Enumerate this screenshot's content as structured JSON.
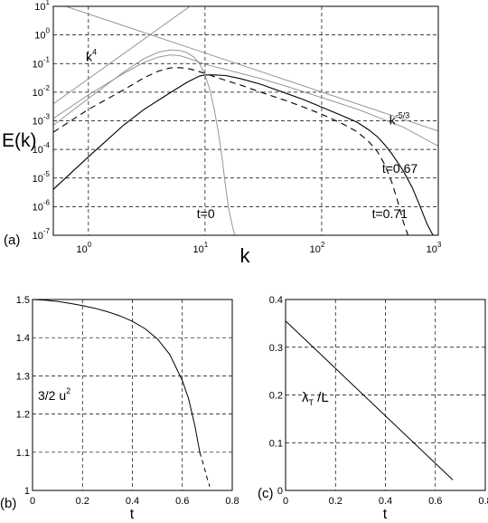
{
  "chart_data": [
    {
      "type": "line",
      "panel_label": "(a)",
      "xlabel": "k",
      "ylabel": "E(k)",
      "xscale": "log",
      "yscale": "log",
      "xlim": [
        0.5,
        1000
      ],
      "ylim": [
        1e-07,
        10
      ],
      "grid": true,
      "x_ticks": [
        {
          "base": "10",
          "exp": "0",
          "value": 1
        },
        {
          "base": "10",
          "exp": "1",
          "value": 10
        },
        {
          "base": "10",
          "exp": "2",
          "value": 100
        },
        {
          "base": "10",
          "exp": "3",
          "value": 1000
        }
      ],
      "y_ticks": [
        {
          "base": "10",
          "exp": "1",
          "value": 10
        },
        {
          "base": "10",
          "exp": "0",
          "value": 1
        },
        {
          "base": "10",
          "exp": "-1",
          "value": 0.1
        },
        {
          "base": "10",
          "exp": "-2",
          "value": 0.01
        },
        {
          "base": "10",
          "exp": "-3",
          "value": 0.001
        },
        {
          "base": "10",
          "exp": "-4",
          "value": 0.0001
        },
        {
          "base": "10",
          "exp": "-5",
          "value": 1e-05
        },
        {
          "base": "10",
          "exp": "-6",
          "value": 1e-06
        },
        {
          "base": "10",
          "exp": "-7",
          "value": 1e-07
        }
      ],
      "annotations": [
        {
          "id": "k4",
          "base": "k",
          "exp": "4",
          "x": 0.95,
          "y": 0.12
        },
        {
          "id": "k53",
          "base": "k",
          "exp": "-5/3",
          "x": 380,
          "y": 0.00075
        },
        {
          "id": "t0",
          "text": "t=0",
          "x": 8.5,
          "y": 4e-07
        },
        {
          "id": "t067",
          "text": "t=0.67",
          "x": 330,
          "y": 1.5e-05
        },
        {
          "id": "t071",
          "text": "t=0.71",
          "x": 270,
          "y": 4e-07
        }
      ],
      "series": [
        {
          "style": "solid",
          "color": "#000000",
          "x": [
            0.5,
            1,
            2,
            3,
            5,
            7,
            9,
            10,
            12,
            15,
            20,
            30,
            50,
            70,
            100,
            150,
            200,
            250,
            300,
            350,
            400,
            500,
            600,
            700,
            800,
            900
          ],
          "y": [
            4e-06,
            5.5e-05,
            0.0007,
            0.0025,
            0.0095,
            0.022,
            0.037,
            0.04,
            0.04,
            0.038,
            0.03,
            0.019,
            0.009,
            0.0055,
            0.003,
            0.0015,
            0.0009,
            0.0005,
            0.00028,
            0.00014,
            7e-05,
            1.8e-05,
            4.5e-06,
            1e-06,
            2.5e-07,
            1e-07
          ]
        },
        {
          "style": "dashed",
          "color": "#000000",
          "x": [
            0.5,
            1,
            2,
            3,
            4,
            5,
            6,
            7,
            8,
            10,
            12,
            15,
            20,
            30,
            50,
            70,
            100,
            150,
            200,
            250,
            300,
            350,
            400,
            450,
            500,
            550
          ],
          "y": [
            0.0004,
            0.0025,
            0.012,
            0.032,
            0.055,
            0.07,
            0.072,
            0.068,
            0.06,
            0.045,
            0.035,
            0.026,
            0.018,
            0.01,
            0.005,
            0.003,
            0.0017,
            0.0008,
            0.00042,
            0.0002,
            8.5e-05,
            2.8e-05,
            7e-06,
            1.5e-06,
            3e-07,
            1e-07
          ]
        },
        {
          "style": "solid",
          "color": "#8c8c8c",
          "x": [
            0.5,
            1,
            2,
            3,
            4,
            5,
            6,
            7,
            8,
            9,
            10,
            11,
            12,
            13,
            14,
            15,
            16,
            17,
            18
          ],
          "y": [
            0.0007,
            0.006,
            0.05,
            0.15,
            0.25,
            0.3,
            0.29,
            0.24,
            0.17,
            0.1,
            0.04,
            0.012,
            0.0025,
            0.0004,
            5e-05,
            5e-06,
            8e-07,
            2.5e-07,
            1e-07
          ]
        },
        {
          "style": "solid",
          "color": "#8c8c8c",
          "x": [
            0.5,
            1,
            2,
            3,
            4,
            5,
            6,
            7,
            8,
            10,
            15,
            20,
            30,
            50,
            100,
            200,
            500,
            1000
          ],
          "y": [
            0.0012,
            0.008,
            0.045,
            0.11,
            0.17,
            0.2,
            0.19,
            0.16,
            0.13,
            0.095,
            0.062,
            0.046,
            0.03,
            0.016,
            0.0065,
            0.0026,
            0.0006,
            0.00013
          ]
        },
        {
          "style": "solid",
          "color": "#8c8c8c",
          "x": [
            0.5,
            1000
          ],
          "y": [
            0.0039,
            16000000
          ]
        },
        {
          "style": "solid",
          "color": "#8c8c8c",
          "x": [
            0.5,
            1000
          ],
          "y": [
            14,
            0.00044
          ]
        }
      ]
    },
    {
      "type": "line",
      "panel_label": "(b)",
      "xlabel": "t",
      "series_label": {
        "base": "3/2 u",
        "exp": "2"
      },
      "xlim": [
        0,
        0.8
      ],
      "ylim": [
        1,
        1.5
      ],
      "grid": true,
      "x_ticks": [
        "0",
        "0.2",
        "0.4",
        "0.6",
        "0.8"
      ],
      "y_ticks": [
        "1",
        "1.1",
        "1.2",
        "1.3",
        "1.4",
        "1.5"
      ],
      "series": [
        {
          "style": "solid",
          "color": "#000000",
          "x": [
            0.0,
            0.05,
            0.1,
            0.15,
            0.2,
            0.25,
            0.3,
            0.35,
            0.4,
            0.45,
            0.5,
            0.55,
            0.6,
            0.625,
            0.65,
            0.67
          ],
          "y": [
            1.5,
            1.498,
            1.495,
            1.49,
            1.484,
            1.477,
            1.468,
            1.457,
            1.443,
            1.424,
            1.397,
            1.356,
            1.288,
            1.24,
            1.17,
            1.1
          ]
        },
        {
          "style": "dashed",
          "color": "#000000",
          "x": [
            0.67,
            0.68,
            0.69,
            0.7,
            0.71
          ],
          "y": [
            1.1,
            1.078,
            1.055,
            1.03,
            1.01
          ]
        }
      ]
    },
    {
      "type": "line",
      "panel_label": "(c)",
      "xlabel": "t",
      "series_label": {
        "base": "λ",
        "sub": "T",
        "tail": " /L"
      },
      "xlim": [
        0,
        0.8
      ],
      "ylim": [
        0,
        0.4
      ],
      "grid": true,
      "x_ticks": [
        "0",
        "0.2",
        "0.4",
        "0.6",
        "0.8"
      ],
      "y_ticks": [
        "0",
        "0.1",
        "0.2",
        "0.3",
        "0.4"
      ],
      "series": [
        {
          "style": "solid",
          "color": "#000000",
          "x": [
            0.0,
            0.67
          ],
          "y": [
            0.355,
            0.022
          ]
        }
      ]
    }
  ]
}
